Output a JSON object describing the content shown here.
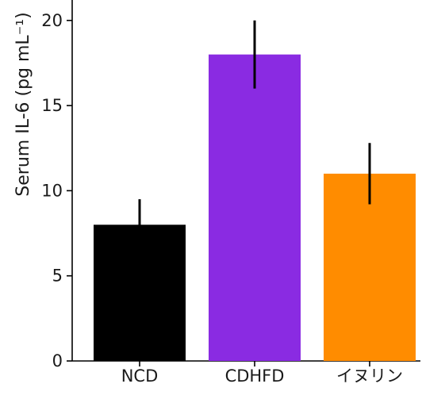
{
  "chart_data": {
    "type": "bar",
    "title": "",
    "xlabel": "",
    "ylabel": "Serum IL-6 (pg mL⁻¹)",
    "categories": [
      "NCD",
      "CDHFD",
      "イヌリン"
    ],
    "values": [
      8.0,
      18.0,
      11.0
    ],
    "error": [
      1.5,
      2.0,
      1.8
    ],
    "colors": [
      "#000000",
      "#8a2be2",
      "#ff8c00"
    ],
    "yticks": [
      0,
      5,
      10,
      15,
      20
    ],
    "ylim": [
      0,
      21.2
    ],
    "grid": false,
    "legend": "none"
  }
}
